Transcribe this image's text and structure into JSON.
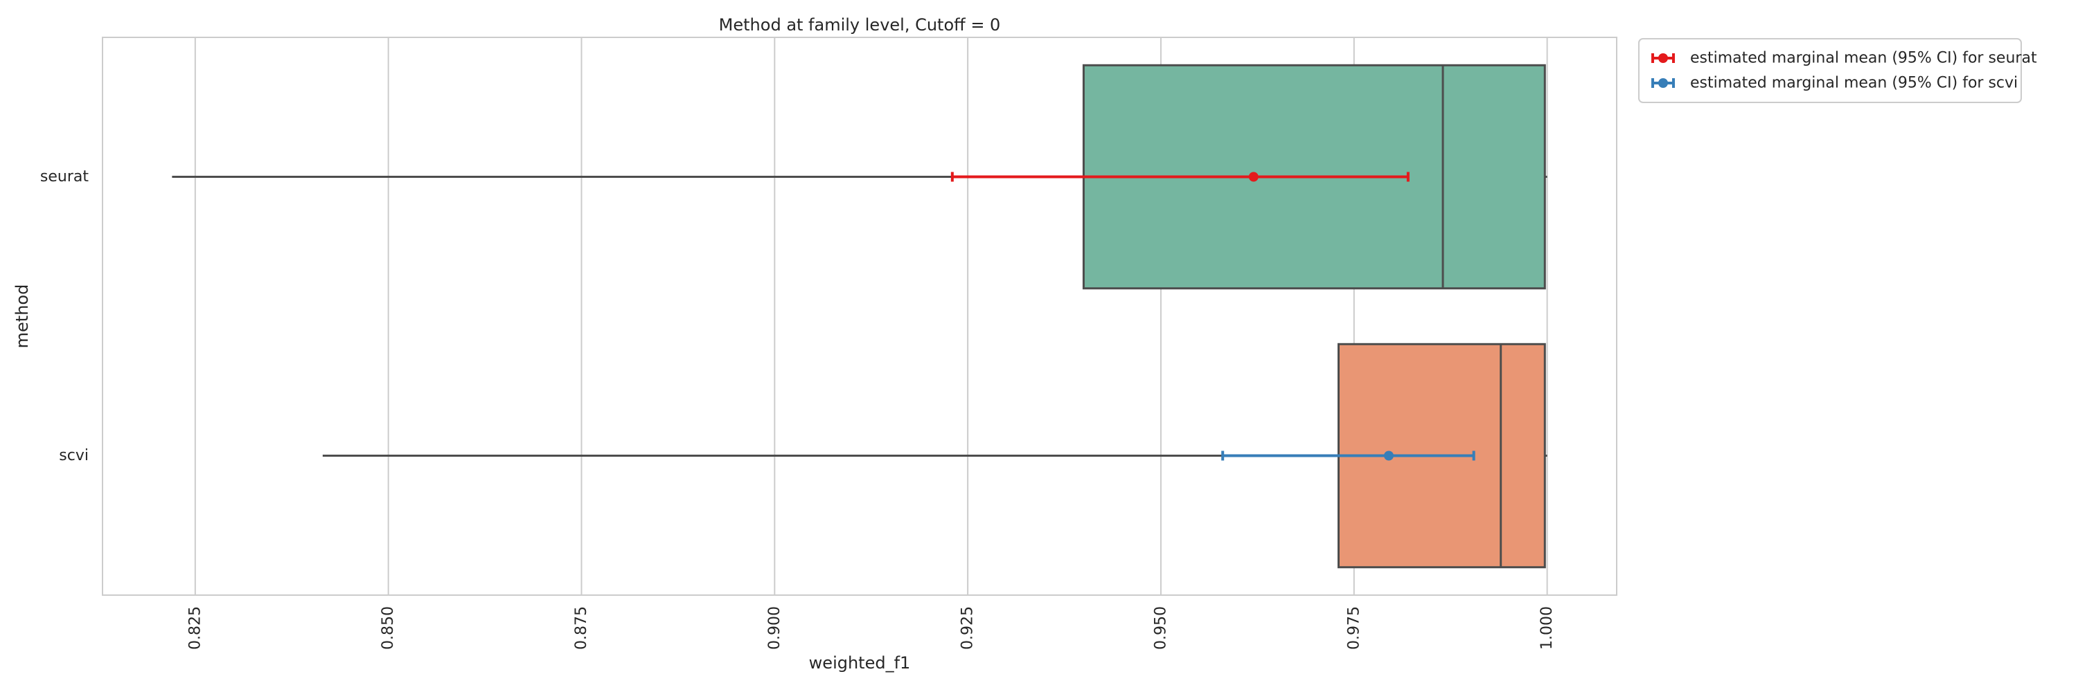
{
  "chart_data": {
    "type": "boxplot",
    "title": "Method at family level, Cutoff = 0",
    "xlabel": "weighted_f1",
    "ylabel": "method",
    "xlim": [
      0.813,
      1.009
    ],
    "x_ticks": [
      0.825,
      0.85,
      0.875,
      0.9,
      0.925,
      0.95,
      0.975,
      1.0
    ],
    "x_tick_labels": [
      "0.825",
      "0.850",
      "0.875",
      "0.900",
      "0.925",
      "0.950",
      "0.975",
      "1.000"
    ],
    "grid": "vertical",
    "legend_position": "outside-top-right",
    "categories": [
      "seurat",
      "scvi"
    ],
    "boxes": [
      {
        "category": "seurat",
        "whisker_low": 0.822,
        "q1": 0.94,
        "median": 0.9865,
        "q3": 0.9997,
        "whisker_high": 1.0,
        "color": "#75b6a0"
      },
      {
        "category": "scvi",
        "whisker_low": 0.8415,
        "q1": 0.973,
        "median": 0.994,
        "q3": 0.9997,
        "whisker_high": 1.0,
        "color": "#e99674"
      }
    ],
    "series": [
      {
        "name": "estimated marginal mean (95% CI) for seurat",
        "category": "seurat",
        "mean": 0.962,
        "ci_low": 0.923,
        "ci_high": 0.982,
        "color": "#e41a1c"
      },
      {
        "name": "estimated marginal mean (95% CI) for scvi",
        "category": "scvi",
        "mean": 0.9795,
        "ci_low": 0.958,
        "ci_high": 0.9905,
        "color": "#377eb8"
      }
    ]
  }
}
